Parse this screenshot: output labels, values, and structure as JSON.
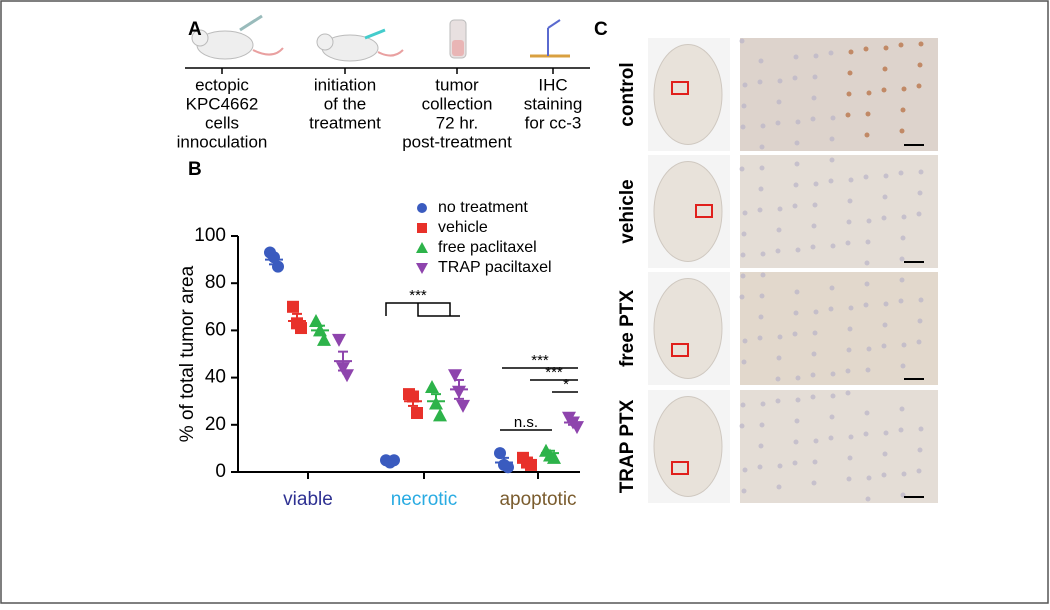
{
  "panel_labels": [
    "A",
    "B",
    "C"
  ],
  "timeline": {
    "steps": [
      [
        "ectopic",
        "KPC4662",
        "cells",
        "innoculation"
      ],
      [
        "initiation",
        "of the",
        "treatment"
      ],
      [
        "tumor",
        "collection",
        "72 hr.",
        "post-treatment"
      ],
      [
        "IHC",
        "staining",
        "for cc-3"
      ]
    ]
  },
  "chart_data": {
    "type": "dot",
    "ylabel": "% of total tumor area",
    "categories": [
      "viable",
      "necrotic",
      "apoptotic"
    ],
    "category_colors": [
      "#2e3192",
      "#29abe2",
      "#7a5c2e"
    ],
    "ylim": [
      0,
      100
    ],
    "yticks": [
      0,
      20,
      40,
      60,
      80,
      100
    ],
    "series": [
      {
        "name": "no treatment",
        "color": "#3a5bbf",
        "marker": "circle",
        "values": [
          90,
          5,
          4
        ],
        "errors": [
          2,
          0.4,
          2
        ],
        "points": [
          [
            93,
            91,
            87
          ],
          [
            5,
            4,
            5
          ],
          [
            8,
            3,
            2
          ]
        ]
      },
      {
        "name": "vehicle",
        "color": "#e8312a",
        "marker": "square",
        "values": [
          64,
          30,
          5
        ],
        "errors": [
          3,
          2,
          1
        ],
        "points": [
          [
            70,
            63,
            61
          ],
          [
            33,
            32,
            25
          ],
          [
            6,
            4,
            3
          ]
        ]
      },
      {
        "name": "free paclitaxel",
        "color": "#2db34a",
        "marker": "triangle-up",
        "values": [
          60,
          30,
          8
        ],
        "errors": [
          2,
          3,
          1
        ],
        "points": [
          [
            64,
            60,
            56
          ],
          [
            36,
            29,
            24
          ],
          [
            9,
            7,
            6
          ]
        ]
      },
      {
        "name": "TRAP paciltaxel",
        "color": "#8e44ad",
        "marker": "triangle-down",
        "values": [
          47,
          35,
          21
        ],
        "errors": [
          4,
          4,
          1
        ],
        "points": [
          [
            56,
            44,
            41
          ],
          [
            41,
            34,
            28
          ],
          [
            23,
            21,
            19
          ]
        ]
      }
    ],
    "annotations": [
      "***",
      "n.s.",
      "***",
      "***",
      "*"
    ]
  },
  "ihc": {
    "rows": [
      "control",
      "vehicle",
      "free PTX",
      "TRAP PTX"
    ]
  }
}
